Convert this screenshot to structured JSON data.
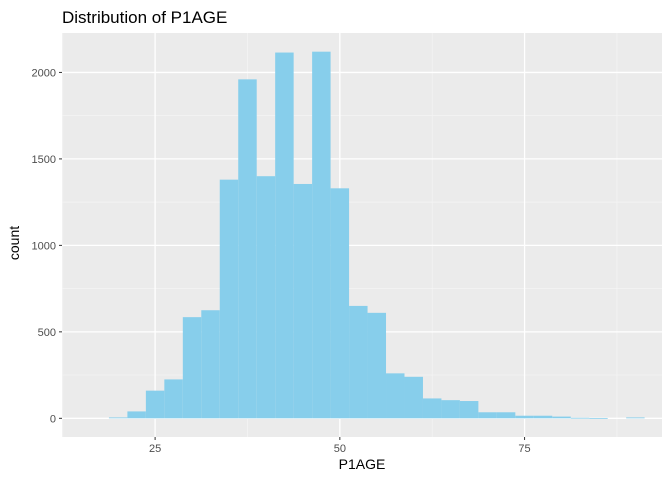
{
  "chart_data": {
    "type": "bar",
    "title": "Distribution of P1AGE",
    "xlabel": "P1AGE",
    "ylabel": "count",
    "xlim": [
      12.4,
      93.6
    ],
    "ylim": [
      -108,
      2228
    ],
    "x_ticks": [
      25,
      50,
      75
    ],
    "y_ticks": [
      0,
      500,
      1000,
      1500,
      2000
    ],
    "grid": true,
    "bin_width": 2.5,
    "bins": [
      {
        "x": 20,
        "count": 5
      },
      {
        "x": 22.5,
        "count": 40
      },
      {
        "x": 25,
        "count": 160
      },
      {
        "x": 27.5,
        "count": 225
      },
      {
        "x": 30,
        "count": 585
      },
      {
        "x": 32.5,
        "count": 625
      },
      {
        "x": 35,
        "count": 1380
      },
      {
        "x": 37.5,
        "count": 1960
      },
      {
        "x": 40,
        "count": 1400
      },
      {
        "x": 42.5,
        "count": 2115
      },
      {
        "x": 45,
        "count": 1355
      },
      {
        "x": 47.5,
        "count": 2120
      },
      {
        "x": 50,
        "count": 1330
      },
      {
        "x": 52.5,
        "count": 650
      },
      {
        "x": 55,
        "count": 610
      },
      {
        "x": 57.5,
        "count": 260
      },
      {
        "x": 60,
        "count": 240
      },
      {
        "x": 62.5,
        "count": 115
      },
      {
        "x": 65,
        "count": 105
      },
      {
        "x": 67.5,
        "count": 100
      },
      {
        "x": 70,
        "count": 35
      },
      {
        "x": 72.5,
        "count": 35
      },
      {
        "x": 75,
        "count": 15
      },
      {
        "x": 77.5,
        "count": 15
      },
      {
        "x": 80,
        "count": 10
      },
      {
        "x": 82.5,
        "count": 3
      },
      {
        "x": 85,
        "count": 2
      },
      {
        "x": 87.5,
        "count": 0
      },
      {
        "x": 90,
        "count": 5
      }
    ]
  },
  "colors": {
    "bar_fill": "#87CEEB",
    "panel_background": "#EBEBEB",
    "grid_major": "#FFFFFF",
    "grid_minor": "#F5F5F5"
  }
}
